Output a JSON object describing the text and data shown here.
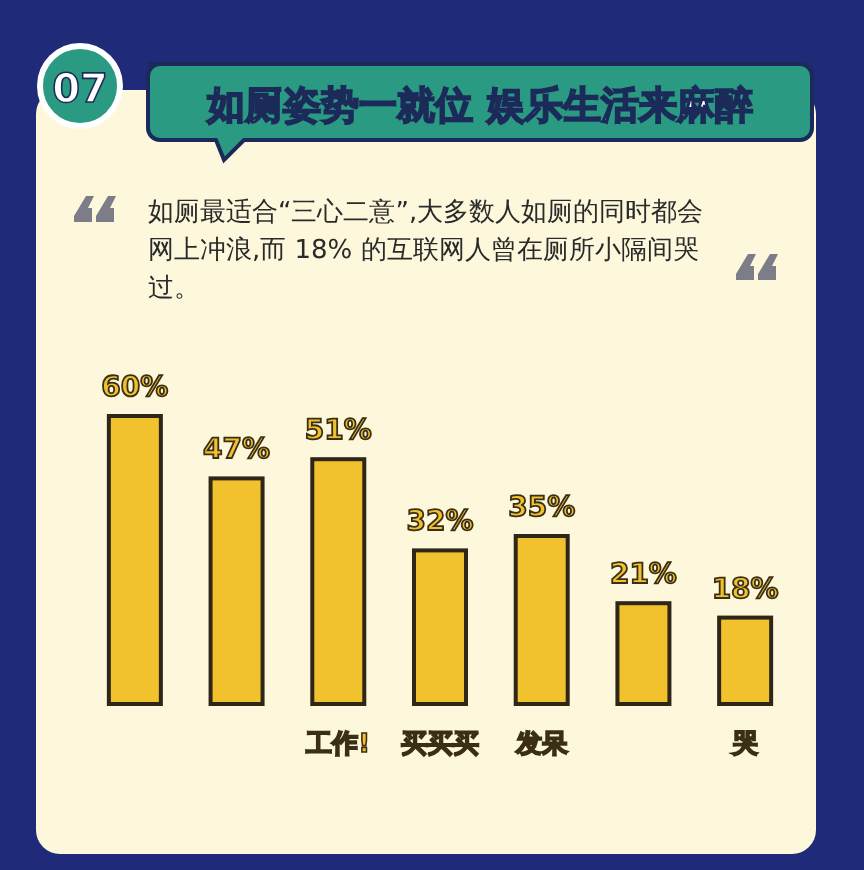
{
  "chart_data": {
    "type": "bar",
    "title": "如厕姿势一就位 娱乐生活来麻醉",
    "subtitle": "如厕最适合“三心二意”,大多数人如厕的同时都会网上冲浪,而 18% 的互联网人曾在厕所小隔间哭过。",
    "annotations": [
      "07"
    ],
    "categories": [
      null,
      null,
      "工作!",
      "买买买",
      "发呆",
      null,
      "哭"
    ],
    "values": [
      60,
      47,
      51,
      32,
      35,
      21,
      18
    ],
    "color": "#f2c12e",
    "data_labels": true,
    "value_labels": [
      "60%",
      "47%",
      "51%",
      "32%",
      "35%",
      "21%",
      "18%"
    ]
  }
}
